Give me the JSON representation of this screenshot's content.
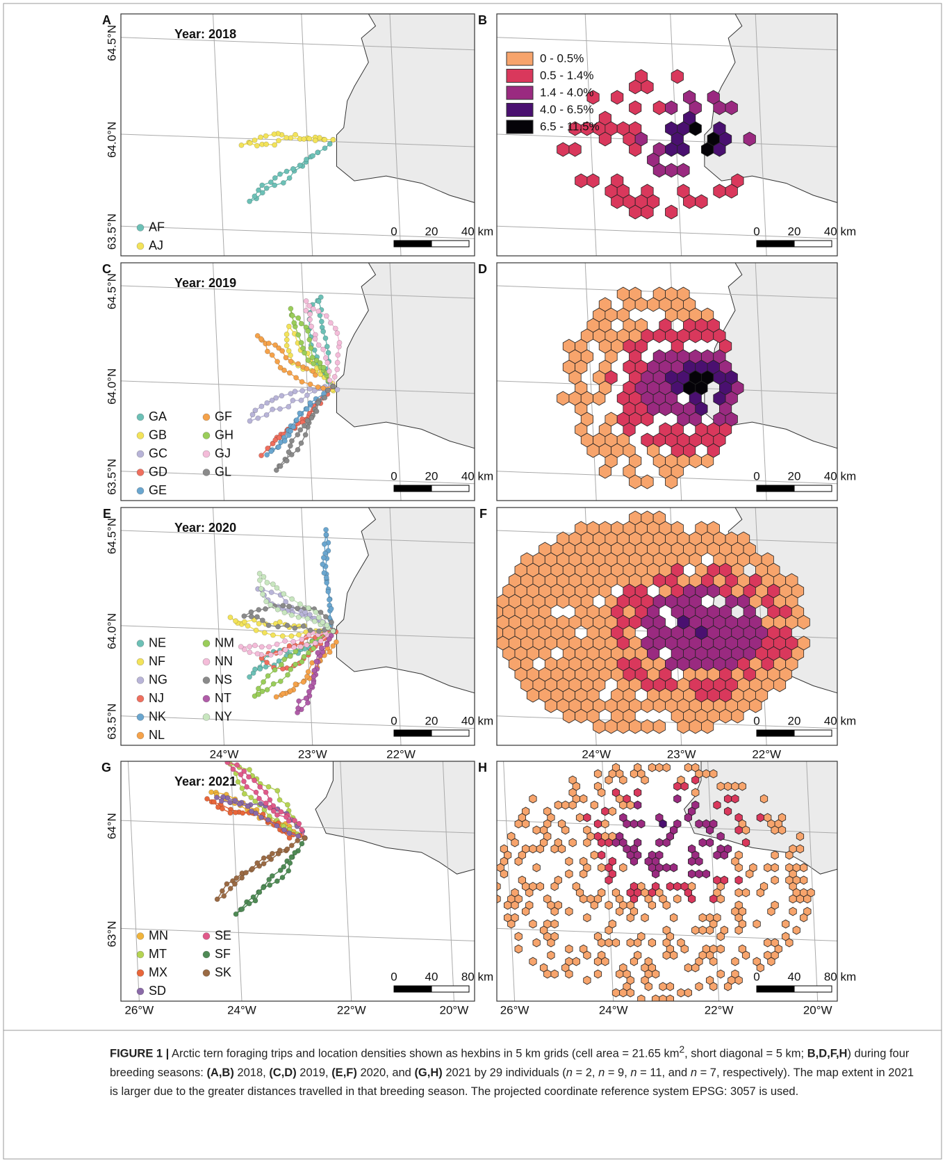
{
  "panels": [
    {
      "letter": "A",
      "title": "Year: 2018",
      "lat_labels": [
        "64.5°N",
        "64.0°N",
        "63.5°N"
      ],
      "legend": [
        {
          "name": "AF",
          "color": "#6cc0b6"
        },
        {
          "name": "AJ",
          "color": "#f3e35a"
        }
      ],
      "scale": [
        "0",
        "20",
        "40 km"
      ]
    },
    {
      "letter": "B",
      "legend": [
        {
          "name": "0 - 0.5%",
          "color": "#f7a46c"
        },
        {
          "name": "0.5 - 1.4%",
          "color": "#d9385c"
        },
        {
          "name": "1.4 - 4.0%",
          "color": "#9a2a80"
        },
        {
          "name": "4.0 - 6.5%",
          "color": "#4a1070"
        },
        {
          "name": "6.5 - 11.5%",
          "color": "#050308"
        }
      ],
      "scale": [
        "0",
        "20",
        "40 km"
      ]
    },
    {
      "letter": "C",
      "title": "Year: 2019",
      "lat_labels": [
        "64.5°N",
        "64.0°N",
        "63.5°N"
      ],
      "legend": [
        {
          "name": "GA",
          "color": "#6cc0b6"
        },
        {
          "name": "GB",
          "color": "#f3e35a"
        },
        {
          "name": "GC",
          "color": "#b8b4d8"
        },
        {
          "name": "GD",
          "color": "#ef6f5e"
        },
        {
          "name": "GE",
          "color": "#6aa6cf"
        },
        {
          "name": "GF",
          "color": "#f5a24a"
        },
        {
          "name": "GH",
          "color": "#9acd5a"
        },
        {
          "name": "GJ",
          "color": "#f4bcd9"
        },
        {
          "name": "GL",
          "color": "#8a8a8a"
        }
      ],
      "scale": [
        "0",
        "20",
        "40 km"
      ]
    },
    {
      "letter": "D",
      "scale": [
        "0",
        "20",
        "40 km"
      ]
    },
    {
      "letter": "E",
      "title": "Year: 2020",
      "lat_labels": [
        "64.5°N",
        "64.0°N",
        "63.5°N"
      ],
      "legend": [
        {
          "name": "NE",
          "color": "#6cc0b6"
        },
        {
          "name": "NF",
          "color": "#f3e35a"
        },
        {
          "name": "NG",
          "color": "#b8b4d8"
        },
        {
          "name": "NJ",
          "color": "#ef6f5e"
        },
        {
          "name": "NK",
          "color": "#6aa6cf"
        },
        {
          "name": "NL",
          "color": "#f5a24a"
        },
        {
          "name": "NM",
          "color": "#9acd5a"
        },
        {
          "name": "NN",
          "color": "#f4bcd9"
        },
        {
          "name": "NS",
          "color": "#8a8a8a"
        },
        {
          "name": "NT",
          "color": "#b05ca8"
        },
        {
          "name": "NY",
          "color": "#c8e6bf"
        }
      ],
      "lon_labels": [
        "24°W",
        "23°W",
        "22°W"
      ],
      "scale": [
        "0",
        "20",
        "40 km"
      ]
    },
    {
      "letter": "F",
      "lon_labels": [
        "24°W",
        "23°W",
        "22°W"
      ],
      "scale": [
        "0",
        "20",
        "40 km"
      ]
    },
    {
      "letter": "G",
      "title": "Year: 2021",
      "lat_labels": [
        "64°N",
        "63°N"
      ],
      "legend": [
        {
          "name": "MN",
          "color": "#f0b43c"
        },
        {
          "name": "MT",
          "color": "#b5d453"
        },
        {
          "name": "MX",
          "color": "#e8663a"
        },
        {
          "name": "SD",
          "color": "#8a6aa8"
        },
        {
          "name": "SE",
          "color": "#e05a8a"
        },
        {
          "name": "SF",
          "color": "#4f8a55"
        },
        {
          "name": "SK",
          "color": "#9a6a44"
        }
      ],
      "lon_labels": [
        "26°W",
        "24°W",
        "22°W",
        "20°W"
      ],
      "scale": [
        "0",
        "40",
        "80 km"
      ]
    },
    {
      "letter": "H",
      "lon_labels": [
        "26°W",
        "24°W",
        "22°W",
        "20°W"
      ],
      "scale": [
        "0",
        "40",
        "80 km"
      ]
    }
  ],
  "caption": [
    {
      "text": "FIGURE 1 |",
      "style": "bold"
    },
    {
      "text": " Arctic tern foraging trips and location densities shown as hexbins in 5 km grids (cell area = 21.65 km"
    },
    {
      "text": "2",
      "style": "sup"
    },
    {
      "text": ", short diagonal = 5 km; "
    },
    {
      "text": "B,D,F,H",
      "style": "bold"
    },
    {
      "text": ") during four breeding seasons: "
    },
    {
      "text": "(A,B)",
      "style": "bold"
    },
    {
      "text": " 2018, "
    },
    {
      "text": "(C,D)",
      "style": "bold"
    },
    {
      "text": " 2019, "
    },
    {
      "text": "(E,F)",
      "style": "bold"
    },
    {
      "text": " 2020, and "
    },
    {
      "text": "(G,H)",
      "style": "bold"
    },
    {
      "text": " 2021 by 29 individuals ("
    },
    {
      "text": "n",
      "style": "italic"
    },
    {
      "text": " = 2, "
    },
    {
      "text": "n",
      "style": "italic"
    },
    {
      "text": " = 9, "
    },
    {
      "text": "n",
      "style": "italic"
    },
    {
      "text": " = 11, and "
    },
    {
      "text": "n",
      "style": "italic"
    },
    {
      "text": " = 7, respectively). The map extent in 2021 is larger due to the greater distances travelled in that breeding season. The projected coordinate reference system EPSG: 3057 is used."
    }
  ]
}
